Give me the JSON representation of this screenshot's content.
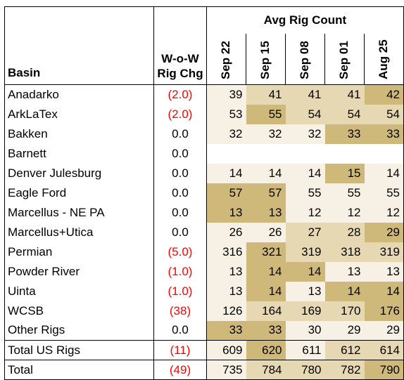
{
  "headers": {
    "basin": "Basin",
    "wow_line1": "W-o-W",
    "wow_line2": "Rig Chg",
    "avg": "Avg Rig Count",
    "dates": [
      "Sep 22",
      "Sep 15",
      "Sep 08",
      "Sep 01",
      "Aug 25"
    ]
  },
  "colors": {
    "light": "#f6f1e4",
    "mid": "#e6d8b2",
    "dark": "#cfb97a",
    "negative": "#ff0000"
  },
  "rows": [
    {
      "basin": "Anadarko",
      "wow": "(2.0)",
      "neg": true,
      "values": [
        "39",
        "41",
        "41",
        "41",
        "42"
      ],
      "shade": [
        "light",
        "mid",
        "mid",
        "mid",
        "dark"
      ]
    },
    {
      "basin": "ArkLaTex",
      "wow": "(2.0)",
      "neg": true,
      "values": [
        "53",
        "55",
        "54",
        "54",
        "54"
      ],
      "shade": [
        "light",
        "dark",
        "mid",
        "mid",
        "mid"
      ]
    },
    {
      "basin": "Bakken",
      "wow": "0.0",
      "neg": false,
      "values": [
        "32",
        "32",
        "32",
        "33",
        "33"
      ],
      "shade": [
        "light",
        "light",
        "light",
        "dark",
        "dark"
      ]
    },
    {
      "basin": "Barnett",
      "wow": "0.0",
      "neg": false,
      "values": [
        "",
        "",
        "",
        "",
        ""
      ],
      "shade": [
        "none",
        "none",
        "none",
        "none",
        "none"
      ]
    },
    {
      "basin": "Denver Julesburg",
      "wow": "0.0",
      "neg": false,
      "values": [
        "14",
        "14",
        "14",
        "15",
        "14"
      ],
      "shade": [
        "light",
        "light",
        "light",
        "dark",
        "light"
      ]
    },
    {
      "basin": "Eagle Ford",
      "wow": "0.0",
      "neg": false,
      "values": [
        "57",
        "57",
        "55",
        "55",
        "55"
      ],
      "shade": [
        "dark",
        "dark",
        "light",
        "light",
        "light"
      ]
    },
    {
      "basin": "Marcellus - NE PA",
      "wow": "0.0",
      "neg": false,
      "values": [
        "13",
        "13",
        "12",
        "12",
        "12"
      ],
      "shade": [
        "dark",
        "dark",
        "light",
        "light",
        "light"
      ]
    },
    {
      "basin": "Marcellus+Utica",
      "wow": "0.0",
      "neg": false,
      "values": [
        "26",
        "26",
        "27",
        "28",
        "29"
      ],
      "shade": [
        "light",
        "light",
        "mid",
        "mid",
        "dark"
      ]
    },
    {
      "basin": "Permian",
      "wow": "(5.0)",
      "neg": true,
      "values": [
        "316",
        "321",
        "319",
        "318",
        "319"
      ],
      "shade": [
        "light",
        "dark",
        "mid",
        "mid",
        "mid"
      ]
    },
    {
      "basin": "Powder River",
      "wow": "(1.0)",
      "neg": true,
      "values": [
        "13",
        "14",
        "14",
        "13",
        "13"
      ],
      "shade": [
        "light",
        "dark",
        "dark",
        "light",
        "light"
      ]
    },
    {
      "basin": "Uinta",
      "wow": "(1.0)",
      "neg": true,
      "values": [
        "13",
        "14",
        "13",
        "14",
        "14"
      ],
      "shade": [
        "light",
        "dark",
        "light",
        "dark",
        "dark"
      ]
    },
    {
      "basin": "WCSB",
      "wow": "(38)",
      "neg": true,
      "values": [
        "126",
        "164",
        "169",
        "170",
        "176"
      ],
      "shade": [
        "light",
        "mid",
        "mid",
        "mid",
        "dark"
      ]
    },
    {
      "basin": "Other Rigs",
      "wow": "0.0",
      "neg": false,
      "values": [
        "33",
        "33",
        "30",
        "29",
        "29"
      ],
      "shade": [
        "dark",
        "dark",
        "light",
        "light",
        "light"
      ]
    }
  ],
  "totals": [
    {
      "basin": "Total US Rigs",
      "wow": "(11)",
      "neg": true,
      "values": [
        "609",
        "620",
        "611",
        "612",
        "614"
      ],
      "shade": [
        "light",
        "dark",
        "light",
        "mid",
        "mid"
      ]
    },
    {
      "basin": "Total",
      "wow": "(49)",
      "neg": true,
      "values": [
        "735",
        "784",
        "780",
        "782",
        "790"
      ],
      "shade": [
        "light",
        "mid",
        "mid",
        "mid",
        "dark"
      ]
    }
  ]
}
